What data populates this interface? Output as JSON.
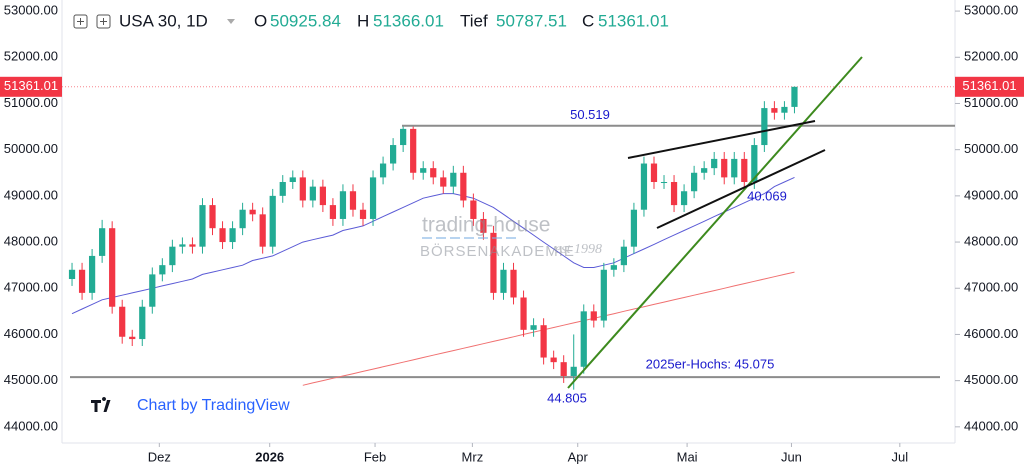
{
  "header": {
    "symbol": "USA 30, 1D",
    "open_label": "O",
    "open": "50925.84",
    "high_label": "H",
    "high": "51366.01",
    "low_label": "Tief",
    "low": "50787.51",
    "close_label": "C",
    "close": "51361.01"
  },
  "watermark": {
    "brand": "trading-house",
    "academy": "BÖRSENAKADEMIE",
    "since": "est 1998"
  },
  "attribution": "Chart by TradingView",
  "chart_data": {
    "type": "candlestick",
    "categories": [
      null,
      null,
      null,
      null,
      null,
      null,
      null,
      null,
      null,
      null,
      null,
      null,
      null,
      null,
      null,
      null,
      null,
      null,
      null,
      null,
      null,
      null,
      null,
      null,
      null,
      null,
      null,
      null,
      null,
      null,
      null,
      null,
      null,
      null,
      null,
      null,
      null,
      null,
      null,
      null,
      null,
      null,
      null,
      null,
      null,
      null,
      null,
      null,
      null,
      null,
      null,
      null,
      null,
      null,
      null,
      null,
      null,
      null,
      null,
      null,
      null,
      null,
      null,
      null,
      null,
      null,
      null,
      null,
      null,
      null,
      null,
      null,
      null
    ],
    "open": [
      47200,
      47400,
      46900,
      47700,
      48300,
      46600,
      45950,
      45900,
      46600,
      47300,
      47500,
      47900,
      47950,
      47900,
      48800,
      48300,
      48000,
      48300,
      48700,
      48600,
      47900,
      49000,
      49300,
      49400,
      48900,
      49200,
      48800,
      48500,
      49100,
      48700,
      48500,
      49400,
      49700,
      50100,
      50450,
      49500,
      49600,
      49400,
      49200,
      49500,
      48900,
      48500,
      48200,
      46900,
      47400,
      46800,
      46100,
      46200,
      45500,
      45400,
      45100,
      45300,
      46500,
      46300,
      47400,
      47500,
      47900,
      48700,
      49700,
      49300,
      49300,
      48800,
      49100,
      49500,
      49600,
      49800,
      49400,
      49800,
      49300,
      50100,
      50900,
      50800,
      50925.84
    ],
    "high": [
      47550,
      47550,
      47850,
      48480,
      48450,
      46750,
      46100,
      46750,
      47450,
      47650,
      48050,
      48100,
      48100,
      48950,
      48950,
      48450,
      48450,
      48850,
      48850,
      48750,
      49150,
      49450,
      49550,
      49550,
      49350,
      49350,
      48950,
      49250,
      49250,
      48850,
      49550,
      49850,
      50250,
      50500,
      50500,
      49750,
      49750,
      49550,
      49650,
      49650,
      49050,
      48650,
      48350,
      47550,
      47550,
      46950,
      46350,
      46350,
      45650,
      45550,
      46000,
      46650,
      46650,
      47550,
      47650,
      48050,
      48850,
      49850,
      49850,
      49450,
      49450,
      49250,
      49650,
      49750,
      49950,
      49950,
      49950,
      49950,
      50250,
      51050,
      51050,
      51050,
      51366.01
    ],
    "low": [
      47050,
      46750,
      46750,
      47550,
      46450,
      45800,
      45750,
      45750,
      46450,
      47150,
      47350,
      47750,
      47750,
      47750,
      48150,
      47850,
      47850,
      48150,
      48450,
      47750,
      47750,
      48850,
      49150,
      48750,
      48750,
      48650,
      48350,
      48350,
      48550,
      48350,
      48350,
      49250,
      49550,
      49950,
      49350,
      49350,
      49250,
      49050,
      49050,
      48750,
      48350,
      48050,
      46750,
      46750,
      46650,
      45950,
      45950,
      45350,
      45250,
      44950,
      44805,
      45150,
      46150,
      46150,
      47250,
      47350,
      47750,
      48550,
      49150,
      49150,
      48650,
      48650,
      48950,
      49350,
      49450,
      49250,
      49250,
      49150,
      49150,
      49950,
      50650,
      50650,
      50787.51
    ],
    "close": [
      47400,
      46900,
      47700,
      48300,
      46600,
      45950,
      45900,
      46600,
      47300,
      47500,
      47900,
      47950,
      47900,
      48800,
      48300,
      48000,
      48300,
      48700,
      48600,
      47900,
      49000,
      49300,
      49400,
      48900,
      49200,
      48800,
      48500,
      49100,
      48700,
      48500,
      49400,
      49700,
      50100,
      50450,
      49500,
      49600,
      49400,
      49200,
      49500,
      48900,
      48500,
      48200,
      46900,
      47400,
      46800,
      46100,
      46200,
      45500,
      45400,
      45100,
      45300,
      46500,
      46300,
      47400,
      47500,
      47900,
      48700,
      49700,
      49300,
      49300,
      48800,
      49100,
      49500,
      49600,
      49800,
      49400,
      49800,
      49300,
      50100,
      50900,
      50800,
      50925.84,
      51361.01
    ],
    "up_color": "#22ab94",
    "down_color": "#f23645",
    "moving_averages": [
      {
        "color": "#5b5bd6",
        "values": [
          46450,
          46550,
          46650,
          46750,
          46800,
          46850,
          46900,
          46950,
          47000,
          47050,
          47100,
          47150,
          47200,
          47300,
          47350,
          47400,
          47450,
          47500,
          47600,
          47650,
          47700,
          47800,
          47900,
          48000,
          48050,
          48100,
          48150,
          48250,
          48300,
          48350,
          48450,
          48550,
          48650,
          48750,
          48850,
          48950,
          49000,
          49050,
          49050,
          49000,
          48950,
          48850,
          48750,
          48600,
          48450,
          48300,
          48150,
          48000,
          47850,
          47700,
          47550,
          47450,
          47450,
          47500,
          47550,
          47650,
          47750,
          47850,
          47950,
          48050,
          48150,
          48250,
          48350,
          48450,
          48550,
          48650,
          48750,
          48850,
          48950,
          49050,
          49200,
          49300,
          49400
        ]
      },
      {
        "color": "#f07070",
        "values": [
          null,
          null,
          null,
          null,
          null,
          null,
          null,
          null,
          null,
          null,
          null,
          null,
          null,
          null,
          null,
          null,
          null,
          null,
          null,
          null,
          null,
          null,
          null,
          44900,
          44950,
          45000,
          45050,
          45100,
          45150,
          45200,
          45250,
          45300,
          45350,
          45400,
          45450,
          45500,
          45550,
          45600,
          45650,
          45700,
          45750,
          45800,
          45850,
          45900,
          45950,
          46000,
          46050,
          46100,
          46150,
          46200,
          46250,
          46300,
          46350,
          46400,
          46450,
          46500,
          46550,
          46600,
          46650,
          46700,
          46750,
          46800,
          46850,
          46900,
          46950,
          47000,
          47050,
          47100,
          47150,
          47200,
          47250,
          47300,
          47350
        ]
      }
    ],
    "hlines": [
      {
        "value": 50519,
        "label": "50.519"
      },
      {
        "value": 45075,
        "label": "2025er-Hochs: 45.075"
      }
    ],
    "annotations": [
      "40.069",
      "44.805"
    ],
    "xlim": [
      -1,
      88
    ],
    "xticks": [
      {
        "value": 8.7,
        "label": "Dez"
      },
      {
        "value": 19.7,
        "label": "2026"
      },
      {
        "value": 30.2,
        "label": "Feb"
      },
      {
        "value": 39.9,
        "label": "Mrz"
      },
      {
        "value": 50.4,
        "label": "Apr"
      },
      {
        "value": 61.3,
        "label": "Mai"
      },
      {
        "value": 71.7,
        "label": "Jun"
      },
      {
        "value": 82.5,
        "label": "Jul"
      }
    ],
    "ylim": [
      43650,
      53240
    ],
    "yticks": [
      {
        "value": 44000,
        "label": "44000.00"
      },
      {
        "value": 45000,
        "label": "45000.00"
      },
      {
        "value": 46000,
        "label": "46000.00"
      },
      {
        "value": 47000,
        "label": "47000.00"
      },
      {
        "value": 48000,
        "label": "48000.00"
      },
      {
        "value": 49000,
        "label": "49000.00"
      },
      {
        "value": 50000,
        "label": "50000.00"
      },
      {
        "value": 51000,
        "label": "51000.00"
      },
      {
        "value": 52000,
        "label": "52000.00"
      },
      {
        "value": 53000,
        "label": "53000.00"
      }
    ],
    "price_line_color": "#f23645"
  }
}
